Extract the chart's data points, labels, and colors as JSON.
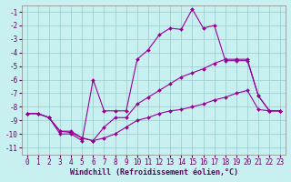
{
  "bg_color": "#c8f0f0",
  "line_color": "#990099",
  "marker": "D",
  "markersize": 2,
  "linewidth": 0.8,
  "xlim": [
    -0.5,
    23.5
  ],
  "ylim": [
    -11.5,
    -0.5
  ],
  "yticks": [
    -1,
    -2,
    -3,
    -4,
    -5,
    -6,
    -7,
    -8,
    -9,
    -10,
    -11
  ],
  "xticks": [
    0,
    1,
    2,
    3,
    4,
    5,
    6,
    7,
    8,
    9,
    10,
    11,
    12,
    13,
    14,
    15,
    16,
    17,
    18,
    19,
    20,
    21,
    22,
    23
  ],
  "line1_x": [
    0,
    1,
    2,
    3,
    4,
    5,
    6,
    7,
    8,
    9,
    10,
    11,
    12,
    13,
    14,
    15,
    16,
    17,
    18,
    19,
    20,
    21,
    22,
    23
  ],
  "line1_y": [
    -8.5,
    -8.5,
    -8.8,
    -10.0,
    -10.0,
    -10.5,
    -6.0,
    -8.3,
    -8.3,
    -8.3,
    -4.5,
    -3.8,
    -2.7,
    -2.2,
    -2.3,
    -0.8,
    -2.2,
    -2.0,
    -4.6,
    -4.6,
    -4.6,
    -7.2,
    -8.3,
    -8.3
  ],
  "line2_x": [
    0,
    1,
    2,
    3,
    4,
    5,
    6,
    7,
    8,
    9,
    10,
    11,
    12,
    13,
    14,
    15,
    16,
    17,
    18,
    19,
    20,
    21,
    22,
    23
  ],
  "line2_y": [
    -8.5,
    -8.5,
    -8.8,
    -9.8,
    -9.8,
    -10.3,
    -10.5,
    -9.5,
    -8.8,
    -8.8,
    -7.8,
    -7.3,
    -6.8,
    -6.3,
    -5.8,
    -5.5,
    -5.2,
    -4.8,
    -4.5,
    -4.5,
    -4.5,
    -7.2,
    -8.3,
    -8.3
  ],
  "line3_x": [
    0,
    1,
    2,
    3,
    4,
    5,
    6,
    7,
    8,
    9,
    10,
    11,
    12,
    13,
    14,
    15,
    16,
    17,
    18,
    19,
    20,
    21,
    22,
    23
  ],
  "line3_y": [
    -8.5,
    -8.5,
    -8.8,
    -9.8,
    -9.9,
    -10.3,
    -10.5,
    -10.3,
    -10.0,
    -9.5,
    -9.0,
    -8.8,
    -8.5,
    -8.3,
    -8.2,
    -8.0,
    -7.8,
    -7.5,
    -7.3,
    -7.0,
    -6.8,
    -8.2,
    -8.3,
    -8.3
  ],
  "grid_color": "#99cccc",
  "tick_color": "#660066",
  "tick_fontsize": 5.5,
  "xlabel": "Windchill (Refroidissement éolien,°C)",
  "xlabel_fontsize": 6.0
}
